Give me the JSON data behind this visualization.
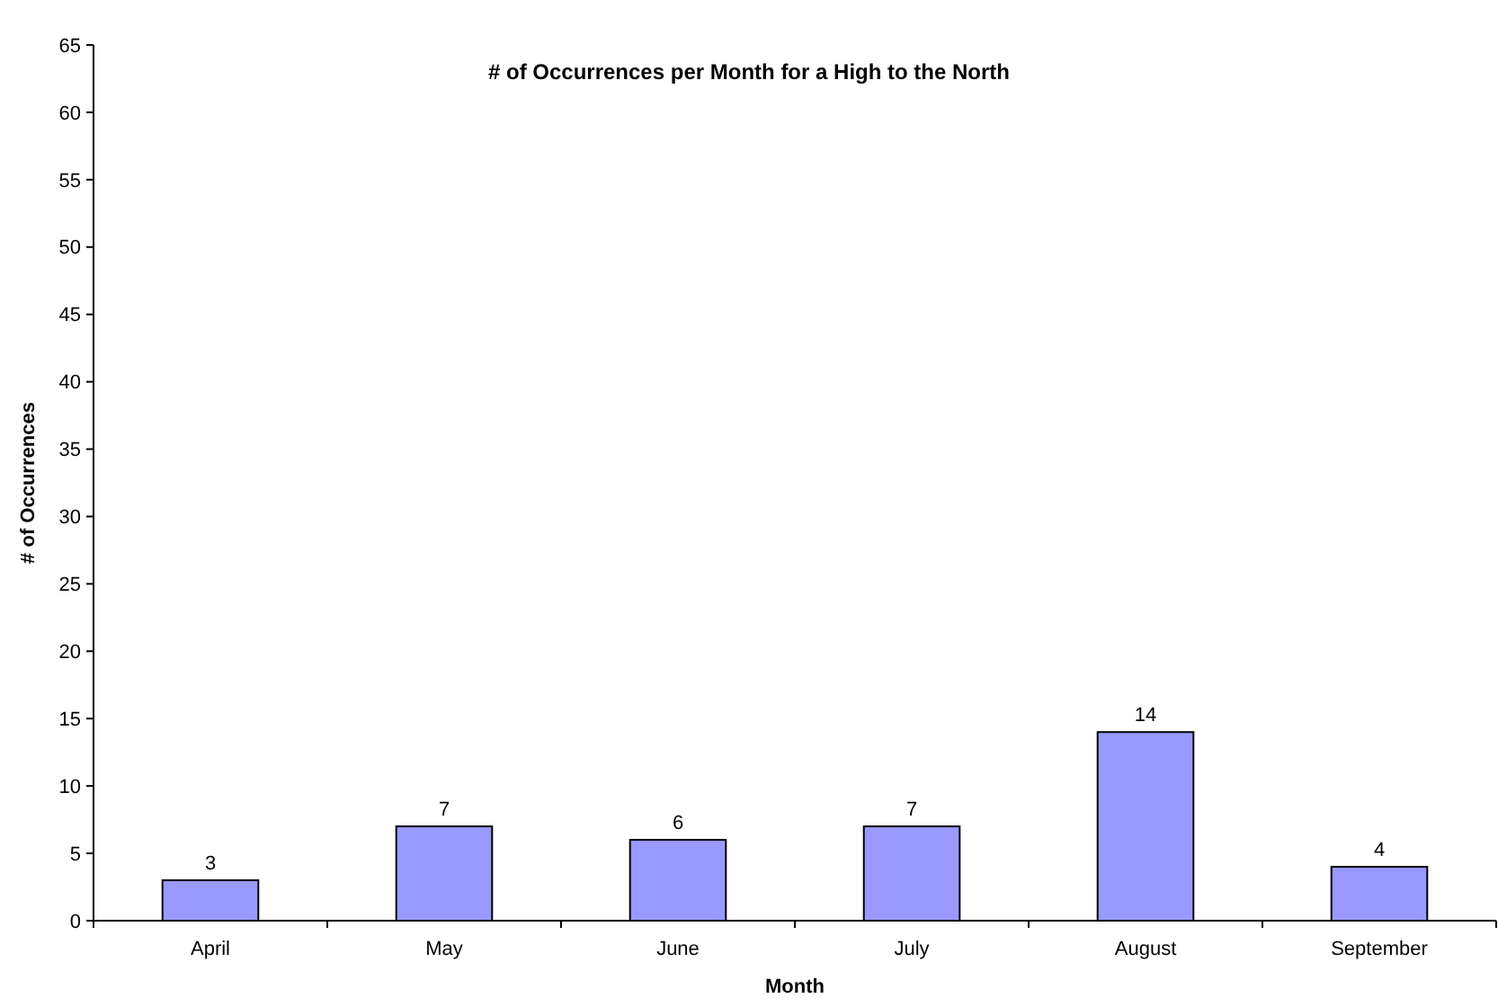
{
  "chart_data": {
    "type": "bar",
    "title": "# of Occurrences per Month for a High to the North",
    "xlabel": "Month",
    "ylabel": "# of Occurrences",
    "categories": [
      "April",
      "May",
      "June",
      "July",
      "August",
      "September"
    ],
    "values": [
      3,
      7,
      6,
      7,
      14,
      4
    ],
    "color": "#9999ff",
    "ylim": [
      0,
      65
    ],
    "yticks": [
      0,
      5,
      10,
      15,
      20,
      25,
      30,
      35,
      40,
      45,
      50,
      55,
      60,
      65
    ],
    "data_labels": true
  }
}
